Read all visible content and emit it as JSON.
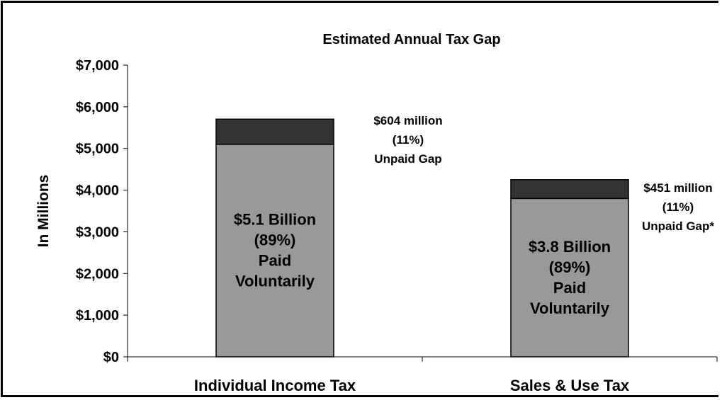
{
  "chart_data": {
    "type": "bar",
    "stacked": true,
    "title": "Estimated Annual Tax Gap",
    "ylabel": "In Millions",
    "xlabel": "",
    "ylim": [
      0,
      7000
    ],
    "yticks": [
      0,
      1000,
      2000,
      3000,
      4000,
      5000,
      6000,
      7000
    ],
    "ytick_labels": [
      "$0",
      "$1,000",
      "$2,000",
      "$3,000",
      "$4,000",
      "$5,000",
      "$6,000",
      "$7,000"
    ],
    "categories": [
      "Individual Income Tax",
      "Sales & Use Tax"
    ],
    "series": [
      {
        "values": [
          5100,
          3800
        ],
        "color": "#999999"
      },
      {
        "values": [
          604,
          451
        ],
        "color": "#333333"
      }
    ],
    "bar_labels": [
      [
        "$5.1 Billion",
        "(89%)",
        "Paid",
        "Voluntarily"
      ],
      [
        "$3.8 Billion",
        "(89%)",
        "Paid",
        "Voluntarily"
      ]
    ],
    "gap_labels": [
      [
        "$604 million",
        "(11%)",
        "Unpaid Gap"
      ],
      [
        "$451 million",
        "(11%)",
        "Unpaid Gap*"
      ]
    ],
    "grid": false,
    "legend": "none"
  }
}
